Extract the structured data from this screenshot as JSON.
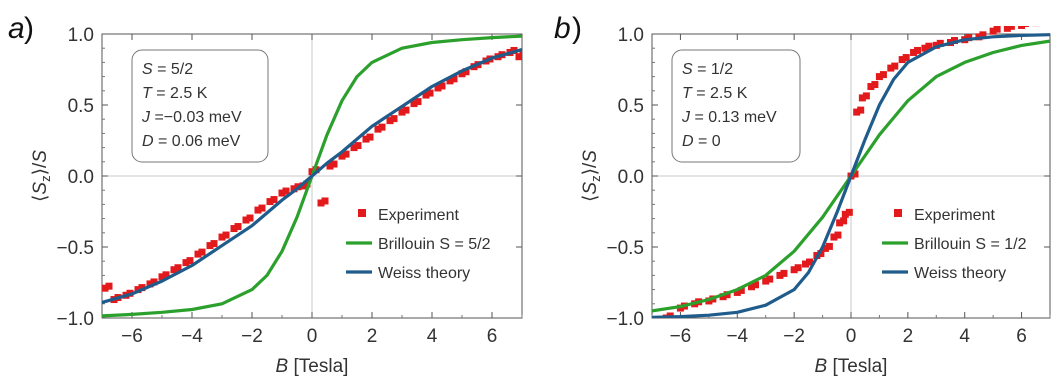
{
  "chart_data": [
    {
      "panel": "a",
      "type": "scatter",
      "xlabel": "B [Tesla]",
      "ylabel": "⟨Sz⟩/S",
      "xlim": [
        -7,
        7
      ],
      "ylim": [
        -1.0,
        1.0
      ],
      "xticks": [
        -6,
        -4,
        -2,
        0,
        2,
        4,
        6
      ],
      "yticks": [
        -1.0,
        -0.5,
        0.0,
        0.5,
        1.0
      ],
      "xtick_labels": [
        "−6",
        "−4",
        "−2",
        "0",
        "2",
        "4",
        "6"
      ],
      "ytick_labels": [
        "−1.0",
        "−0.5",
        "0.0",
        "0.5",
        "1.0"
      ],
      "grid": false,
      "legend_position": "bottom-right",
      "info_box": [
        {
          "symbol": "S",
          "text": " = 5/2"
        },
        {
          "symbol": "T",
          "text": " = 2.5 K"
        },
        {
          "symbol": "J",
          "text": " =−0.03 meV"
        },
        {
          "symbol": "D",
          "text": " = 0.06 meV"
        }
      ],
      "series": [
        {
          "name": "Experiment",
          "kind": "markers",
          "color": "#e31a1c",
          "x": [
            -6.9,
            -6.6,
            -6.2,
            -5.8,
            -5.4,
            -5.0,
            -4.6,
            -4.2,
            -3.8,
            -3.4,
            -3.0,
            -2.6,
            -2.2,
            -1.8,
            -1.4,
            -1.0,
            -0.6,
            -0.3,
            0.0,
            0.3,
            0.6,
            1.0,
            1.4,
            1.8,
            2.2,
            2.6,
            3.0,
            3.4,
            3.8,
            4.2,
            4.6,
            5.0,
            5.4,
            5.8,
            6.2,
            6.6,
            6.9
          ],
          "y": [
            -0.79,
            -0.87,
            -0.84,
            -0.8,
            -0.76,
            -0.71,
            -0.66,
            -0.61,
            -0.55,
            -0.49,
            -0.43,
            -0.37,
            -0.31,
            -0.24,
            -0.18,
            -0.12,
            -0.09,
            -0.07,
            0.03,
            -0.19,
            0.07,
            0.14,
            0.2,
            0.26,
            0.33,
            0.39,
            0.45,
            0.51,
            0.57,
            0.62,
            0.67,
            0.72,
            0.77,
            0.81,
            0.84,
            0.87,
            0.84
          ]
        },
        {
          "name": "Brillouin S = 5/2",
          "kind": "line",
          "color": "#2ca02c",
          "x": [
            -7,
            -6,
            -5,
            -4,
            -3,
            -2,
            -1.5,
            -1,
            -0.5,
            0,
            0.5,
            1,
            1.5,
            2,
            3,
            4,
            5,
            6,
            7
          ],
          "y": [
            -0.985,
            -0.975,
            -0.96,
            -0.94,
            -0.9,
            -0.8,
            -0.7,
            -0.53,
            -0.29,
            0.0,
            0.29,
            0.53,
            0.7,
            0.8,
            0.9,
            0.94,
            0.96,
            0.975,
            0.985
          ]
        },
        {
          "name": "Weiss theory",
          "kind": "line",
          "color": "#1f5c8b",
          "x": [
            -7,
            -6,
            -5,
            -4,
            -3,
            -2,
            -1,
            -0.5,
            0,
            0.5,
            1,
            2,
            3,
            4,
            5,
            6,
            7
          ],
          "y": [
            -0.89,
            -0.83,
            -0.74,
            -0.63,
            -0.49,
            -0.35,
            -0.17,
            -0.09,
            0.0,
            0.09,
            0.17,
            0.35,
            0.49,
            0.63,
            0.74,
            0.83,
            0.89
          ]
        }
      ]
    },
    {
      "panel": "b",
      "type": "scatter",
      "xlabel": "B [Tesla]",
      "ylabel": "⟨Sz⟩/S",
      "xlim": [
        -7,
        7
      ],
      "ylim": [
        -1.0,
        1.0
      ],
      "xticks": [
        -6,
        -4,
        -2,
        0,
        2,
        4,
        6
      ],
      "yticks": [
        -1.0,
        -0.5,
        0.0,
        0.5,
        1.0
      ],
      "xtick_labels": [
        "−6",
        "−4",
        "−2",
        "0",
        "2",
        "4",
        "6"
      ],
      "ytick_labels": [
        "−1.0",
        "−0.5",
        "0.0",
        "0.5",
        "1.0"
      ],
      "grid": false,
      "legend_position": "bottom-right",
      "info_box": [
        {
          "symbol": "S",
          "text": " = 1/2"
        },
        {
          "symbol": "T",
          "text": " = 2.5 K"
        },
        {
          "symbol": "J",
          "text": " = 0.13 meV"
        },
        {
          "symbol": "D",
          "text": " = 0"
        }
      ],
      "series": [
        {
          "name": "Experiment",
          "kind": "markers",
          "color": "#e31a1c",
          "x": [
            -6.9,
            -6.5,
            -6.0,
            -5.5,
            -5.0,
            -4.5,
            -4.0,
            -3.5,
            -3.0,
            -2.5,
            -2.0,
            -1.6,
            -1.2,
            -0.9,
            -0.6,
            -0.4,
            -0.2,
            0.0,
            0.2,
            0.4,
            0.7,
            1.0,
            1.4,
            1.8,
            2.2,
            2.6,
            3.0,
            3.5,
            4.0,
            4.5,
            5.0,
            5.5,
            6.0,
            6.5,
            6.9
          ],
          "y": [
            -1.03,
            -1.0,
            -0.93,
            -0.9,
            -0.88,
            -0.85,
            -0.82,
            -0.78,
            -0.74,
            -0.7,
            -0.66,
            -0.62,
            -0.56,
            -0.51,
            -0.43,
            -0.33,
            -0.27,
            0.0,
            0.45,
            0.55,
            0.63,
            0.7,
            0.76,
            0.82,
            0.87,
            0.9,
            0.92,
            0.94,
            0.96,
            0.98,
            1.02,
            1.04,
            1.06,
            1.08,
            1.1
          ]
        },
        {
          "name": "Brillouin S = 1/2",
          "kind": "line",
          "color": "#2ca02c",
          "x": [
            -7,
            -6,
            -5,
            -4,
            -3,
            -2,
            -1,
            0,
            1,
            2,
            3,
            4,
            5,
            6,
            7
          ],
          "y": [
            -0.95,
            -0.92,
            -0.87,
            -0.8,
            -0.7,
            -0.53,
            -0.29,
            0.0,
            0.29,
            0.53,
            0.7,
            0.8,
            0.87,
            0.92,
            0.95
          ]
        },
        {
          "name": "Weiss theory",
          "kind": "line",
          "color": "#1f5c8b",
          "x": [
            -7,
            -6,
            -5,
            -4,
            -3,
            -2,
            -1.5,
            -1,
            -0.5,
            0,
            0.5,
            1,
            1.5,
            2,
            3,
            4,
            5,
            6,
            7
          ],
          "y": [
            -0.995,
            -0.99,
            -0.98,
            -0.96,
            -0.91,
            -0.8,
            -0.68,
            -0.5,
            -0.26,
            0.0,
            0.26,
            0.5,
            0.68,
            0.8,
            0.91,
            0.96,
            0.98,
            0.99,
            0.995
          ]
        }
      ]
    }
  ]
}
